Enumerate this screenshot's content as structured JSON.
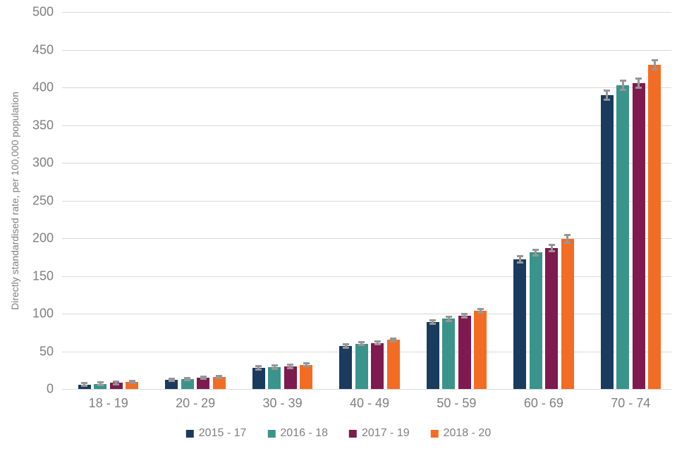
{
  "chart_data": {
    "type": "bar",
    "title": "",
    "xlabel": "",
    "ylabel": "Directly standardised rate, per 100,000 population",
    "ylim": [
      0,
      500
    ],
    "yticks": [
      0,
      50,
      100,
      150,
      200,
      250,
      300,
      350,
      400,
      450,
      500
    ],
    "grid": true,
    "legend_position": "bottom",
    "categories": [
      "18 - 19",
      "20 - 29",
      "30 - 39",
      "40 - 49",
      "50 - 59",
      "60 - 69",
      "70 - 74"
    ],
    "series": [
      {
        "name": "2015 - 17",
        "color": "#1a3a5e",
        "values": [
          6,
          12,
          28,
          57,
          89,
          172,
          390
        ],
        "errors": [
          1.5,
          1.5,
          2,
          2,
          2.5,
          4,
          6
        ]
      },
      {
        "name": "2016 - 18",
        "color": "#3a948b",
        "values": [
          7,
          13,
          29,
          60,
          93,
          181,
          403
        ],
        "errors": [
          1.5,
          1.5,
          2,
          2,
          2.5,
          4,
          6
        ]
      },
      {
        "name": "2017 - 19",
        "color": "#7e1a4f",
        "values": [
          8,
          15,
          30,
          61,
          97,
          187,
          406
        ],
        "errors": [
          1.5,
          1.5,
          2,
          2,
          2.5,
          4,
          6
        ]
      },
      {
        "name": "2018 - 20",
        "color": "#f36c23",
        "values": [
          9,
          16,
          32,
          65,
          104,
          199,
          430
        ],
        "errors": [
          1.5,
          1.5,
          2,
          2,
          2.5,
          5,
          6
        ]
      }
    ],
    "colors": {
      "gridline": "#d9d9d9",
      "error_bar": "#969696",
      "text": "#7f7f7f",
      "background": "#ffffff"
    }
  }
}
